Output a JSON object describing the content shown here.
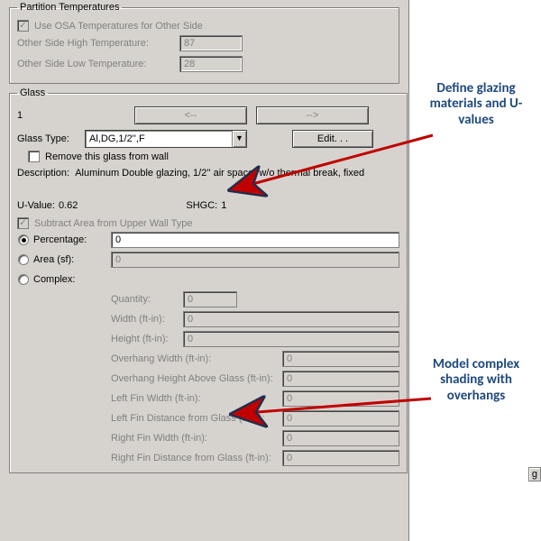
{
  "colors": {
    "ui_bg": "#d6d3ce",
    "annot_text": "#1f497d",
    "arrow_fill": "#c00000",
    "arrow_stroke": "#1f2e4d"
  },
  "partition": {
    "legend": "Partition Temperatures",
    "use_osa_label": "Use OSA Temperatures for Other Side",
    "use_osa_checked": true,
    "high_label": "Other Side High Temperature:",
    "high_value": "87",
    "low_label": "Other Side Low Temperature:",
    "low_value": "28"
  },
  "glass": {
    "legend": "Glass",
    "index": "1",
    "prev_btn": "<--",
    "next_btn": "-->",
    "type_label": "Glass Type:",
    "type_value": "Al,DG,1/2'',F",
    "edit_btn": "Edit. . .",
    "remove_label": "Remove this glass from wall",
    "remove_checked": false,
    "desc_label": "Description:",
    "desc_value": "Aluminum Double glazing, 1/2'' air space, w/o thermal break, fixed",
    "uvalue_label": "U-Value:",
    "uvalue": "0.62",
    "shgc_label": "SHGC:",
    "shgc": "1",
    "subtract_label": "Subtract Area from Upper Wall Type",
    "subtract_checked": true,
    "radios": {
      "percentage": "Percentage:",
      "area": "Area (sf):",
      "complex": "Complex:"
    },
    "percentage_value": "0",
    "area_value": "0",
    "complex_fields": [
      {
        "label": "Quantity:",
        "value": "0",
        "short": true
      },
      {
        "label": "Width (ft-in):",
        "value": "0"
      },
      {
        "label": "Height (ft-in):",
        "value": "0"
      },
      {
        "label": "Overhang Width (ft-in):",
        "value": "0",
        "rightset": true
      },
      {
        "label": "Overhang Height Above Glass (ft-in):",
        "value": "0",
        "rightset": true
      },
      {
        "label": "Left Fin Width (ft-in):",
        "value": "0",
        "rightset": true
      },
      {
        "label": "Left Fin Distance from Glass (ft-in):",
        "value": "0",
        "rightset": true
      },
      {
        "label": "Right Fin Width (ft-in):",
        "value": "0",
        "rightset": true
      },
      {
        "label": "Right Fin Distance from Glass (ft-in):",
        "value": "0",
        "rightset": true
      }
    ]
  },
  "annotations": {
    "glazing": "Define glazing materials and U-values",
    "shading": "Model complex shading with overhangs"
  },
  "stub_text": "g"
}
